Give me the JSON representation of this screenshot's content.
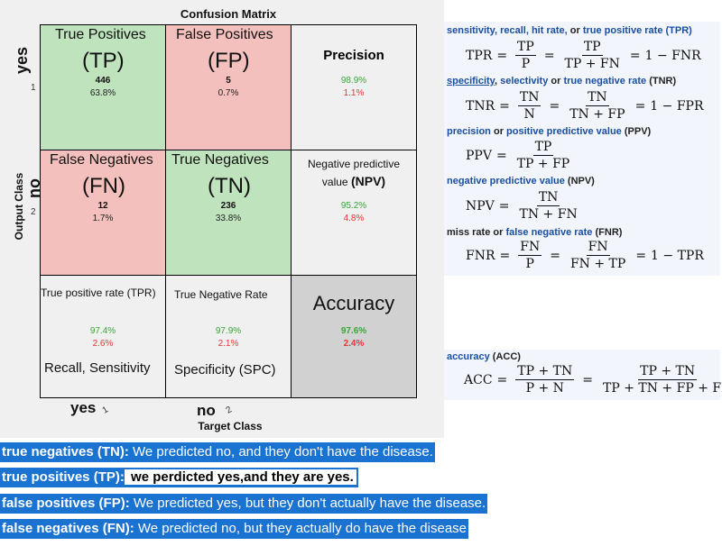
{
  "figure": {
    "title": "Confusion Matrix",
    "y_axis_label": "Output Class",
    "x_axis_label": "Target Class",
    "row_labels": [
      {
        "handwritten": "yes",
        "tick": "1"
      },
      {
        "handwritten": "no",
        "tick": "2"
      }
    ],
    "col_labels": [
      {
        "handwritten": "yes",
        "tick": "1"
      },
      {
        "handwritten": "no",
        "tick": "2"
      }
    ],
    "cells": {
      "tp": {
        "title": "True Positives",
        "abbr": "(TP)",
        "count": "446",
        "pct": "63.8%"
      },
      "fp": {
        "title": "False Positives",
        "abbr": "(FP)",
        "count": "5",
        "pct": "0.7%"
      },
      "fn": {
        "title": "False Negatives",
        "abbr": "(FN)",
        "count": "12",
        "pct": "1.7%"
      },
      "tn": {
        "title": "True Negatives",
        "abbr": "(TN)",
        "count": "236",
        "pct": "33.8%"
      },
      "precision": {
        "title": "Precision",
        "green": "98.9%",
        "red": "1.1%"
      },
      "npv": {
        "title_line1": "Negative predictive",
        "title_line2": "value",
        "title_bold": "(NPV)",
        "green": "95.2%",
        "red": "4.8%"
      },
      "tpr": {
        "title": "True positive rate (TPR)",
        "green": "97.4%",
        "red": "2.6%",
        "subtitle": "Recall, Sensitivity"
      },
      "tnr": {
        "title": "True Negative Rate",
        "green": "97.9%",
        "red": "2.1%",
        "subtitle": "Specificity (SPC)"
      },
      "accuracy": {
        "title": "Accuracy",
        "green": "97.6%",
        "red": "2.4%"
      }
    }
  },
  "formulas": {
    "tpr": {
      "label_blue": "sensitivity, recall, hit rate,",
      "label_or": "or",
      "label_blue2": "true positive rate",
      "label_abbr": "(TPR)",
      "lhs": "TPR",
      "f1n": "TP",
      "f1d": "P",
      "f2n": "TP",
      "f2d": "TP + FN",
      "rhs": "1 − FNR"
    },
    "tnr": {
      "label_blue": "specificity",
      "label_blue2": "selectivity",
      "label_or": "or",
      "label_blue3": "true negative rate",
      "label_abbr": "(TNR)",
      "lhs": "TNR",
      "f1n": "TN",
      "f1d": "N",
      "f2n": "TN",
      "f2d": "TN + FP",
      "rhs": "1 − FPR"
    },
    "ppv": {
      "label_blue": "precision",
      "label_or": "or",
      "label_blue2": "positive predictive value",
      "label_abbr": "(PPV)",
      "lhs": "PPV",
      "fn": "TP",
      "fd": "TP + FP"
    },
    "npv": {
      "label_blue": "negative predictive value",
      "label_abbr": "(NPV)",
      "lhs": "NPV",
      "fn": "TN",
      "fd": "TN + FN"
    },
    "fnr": {
      "label_black": "miss rate",
      "label_or": "or",
      "label_blue": "false negative rate",
      "label_abbr": "(FNR)",
      "lhs": "FNR",
      "f1n": "FN",
      "f1d": "P",
      "f2n": "FN",
      "f2d": "FN + TP",
      "rhs": "1 − TPR"
    },
    "acc": {
      "label_blue": "accuracy",
      "label_abbr": "(ACC)",
      "lhs": "ACC",
      "f1n": "TP + TN",
      "f1d": "P + N",
      "f2n": "TP + TN",
      "f2d": "TP + TN + FP + FN"
    }
  },
  "definitions": [
    {
      "term": "true negatives (TN):",
      "text": " We predicted no, and they don't have the disease."
    },
    {
      "term": "true positives (TP):",
      "text": " we perdicted yes,and they are yes."
    },
    {
      "term": "false positives (FP):",
      "text": " We predicted yes, but they don't actually have the disease."
    },
    {
      "term": "false negatives (FN):",
      "text": " We predicted no, but they actually do have the disease"
    }
  ],
  "colors": {
    "green_cell": "#bfe4bd",
    "red_cell": "#f4c0bd",
    "gray_cell": "#d1d1d1",
    "green_text": "#3aa53a",
    "red_text": "#e23a3a",
    "link_blue": "#1a4fa0",
    "highlight": "#1a73d1"
  }
}
